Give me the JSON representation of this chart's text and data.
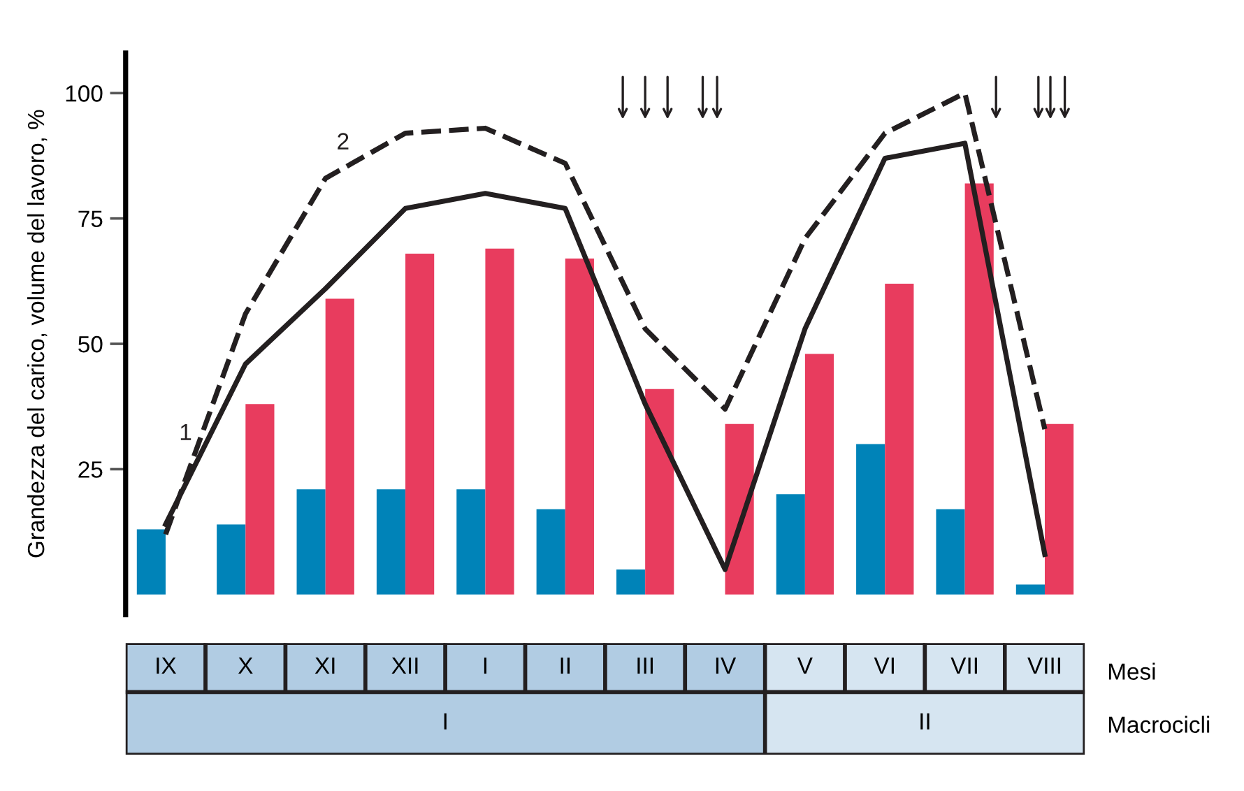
{
  "chart_data": {
    "type": "bar",
    "ylabel": "Grandezza del carico, volume del lavoro, %",
    "categories": [
      "IX",
      "X",
      "XI",
      "XII",
      "I",
      "II",
      "III",
      "IV",
      "V",
      "VI",
      "VII",
      "VIII"
    ],
    "ylim": [
      -4,
      108
    ],
    "yticks": [
      25,
      50,
      75,
      100
    ],
    "grid": false,
    "legend": false,
    "series": [
      {
        "color": "#0083b8",
        "values": [
          13,
          14,
          21,
          21,
          21,
          17,
          5,
          null,
          20,
          30,
          17,
          2
        ]
      },
      {
        "color": "#e83c5e",
        "values": [
          null,
          38,
          59,
          68,
          69,
          67,
          41,
          34,
          48,
          62,
          82,
          34
        ]
      },
      {
        "type": "line",
        "name": "1",
        "color": "#231f20",
        "line_style": "solid",
        "values": [
          14,
          46,
          61,
          77,
          80,
          77,
          38,
          5,
          53,
          87,
          90,
          8
        ]
      },
      {
        "type": "line",
        "name": "2",
        "color": "#231f20",
        "line_style": "dashed",
        "values": [
          12,
          56,
          83,
          92,
          93,
          86,
          53,
          37,
          71,
          92,
          100,
          33
        ]
      }
    ],
    "annotations": [
      "I",
      "II",
      "Mesi",
      "Macrocicli"
    ]
  }
}
